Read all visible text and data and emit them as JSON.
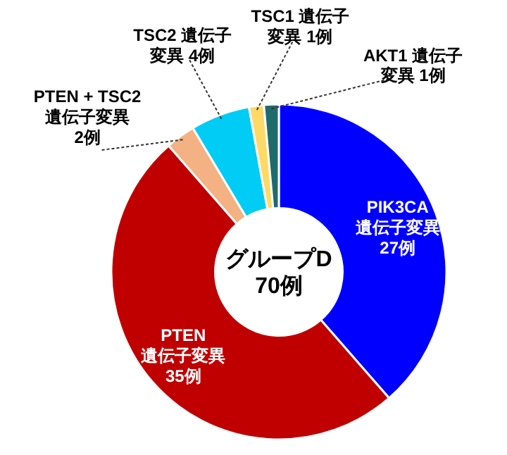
{
  "chart_data": {
    "type": "donut",
    "categories": [
      "PIK3CA\n遺伝子変異\n27例",
      "PTEN\n遺伝子変異\n35例",
      "PTEN + TSC2\n遺伝子変異\n2例",
      "TSC2 遺伝子変異 4例",
      "TSC1 遺伝子変異 1例",
      "AKT1 遺伝子変異 1例"
    ],
    "values": [
      27,
      35,
      2,
      4,
      1,
      1
    ],
    "colors": [
      "#0000ff",
      "#c00000",
      "#f4b183",
      "#00ccf5",
      "#ffd966",
      "#1f6b6b"
    ],
    "annotations": [
      "グループD\n70例"
    ]
  }
}
